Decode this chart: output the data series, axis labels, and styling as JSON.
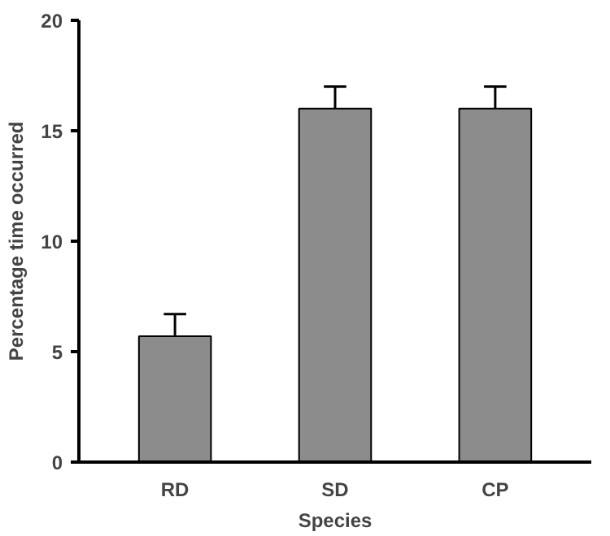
{
  "chart_data": {
    "type": "bar",
    "xlabel": "Species",
    "ylabel": "Percentage time occurred",
    "categories": [
      "RD",
      "SD",
      "CP"
    ],
    "values": [
      5.7,
      16.0,
      16.0
    ],
    "errors": [
      1.0,
      1.0,
      1.0
    ],
    "color": "#8c8c8c",
    "ylim": [
      0,
      20
    ],
    "yticks": [
      0,
      5,
      10,
      15,
      20
    ],
    "grid": false
  }
}
